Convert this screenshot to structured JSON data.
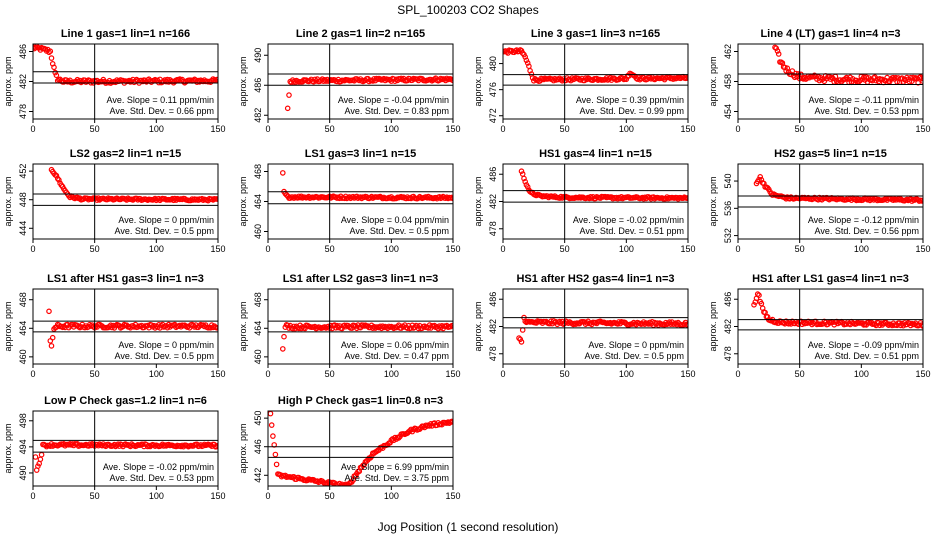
{
  "figure": {
    "title": "SPL_100203  CO2 Shapes",
    "xlabel": "Jog Position (1 second resolution)"
  },
  "chart_data": [
    {
      "type": "scatter",
      "title": "Line 1 gas=1 lin=1 n=166",
      "xlim": [
        0,
        150
      ],
      "ylim": [
        477,
        487
      ],
      "yticks": [
        478,
        482,
        486
      ],
      "xticks": [
        0,
        50,
        100,
        150
      ],
      "ylabel": "approx. ppm",
      "hlines": [
        483.3,
        481.8
      ],
      "vline": 50,
      "slope_label": "Ave. Slope = 0.11 ppm/min",
      "sd_label": "Ave. Std. Dev. = 0.66 ppm",
      "segments": [
        [
          0,
          486.5
        ],
        [
          5,
          486.4
        ],
        [
          10,
          486.2
        ],
        [
          14,
          486.0
        ],
        [
          16,
          484.5
        ],
        [
          18,
          483.0
        ],
        [
          20,
          482.3
        ],
        [
          25,
          482.0
        ],
        [
          150,
          482.1
        ]
      ],
      "noise": 0.25
    },
    {
      "type": "scatter",
      "title": "Line 2 gas=1 lin=2 n=165",
      "xlim": [
        0,
        150
      ],
      "ylim": [
        481.5,
        491.5
      ],
      "yticks": [
        482,
        486,
        490
      ],
      "xticks": [
        0,
        50,
        100,
        150
      ],
      "ylabel": "approx. ppm",
      "hlines": [
        487.5,
        486.0
      ],
      "vline": 50,
      "slope_label": "Ave. Slope = -0.04 ppm/min",
      "sd_label": "Ave. Std. Dev. = 0.83 ppm",
      "segments": [
        [
          16,
          483.0
        ],
        [
          17,
          484.7
        ],
        [
          18,
          486.5
        ],
        [
          25,
          486.6
        ],
        [
          150,
          486.8
        ]
      ],
      "noise": 0.2
    },
    {
      "type": "scatter",
      "title": "Line 3 gas=1 lin=3 n=165",
      "xlim": [
        0,
        150
      ],
      "ylim": [
        471.5,
        483
      ],
      "yticks": [
        472,
        476,
        480
      ],
      "xticks": [
        0,
        50,
        100,
        150
      ],
      "ylabel": "approx. ppm",
      "hlines": [
        478.3,
        476.7
      ],
      "vline": 50,
      "slope_label": "Ave. Slope = 0.39 ppm/min",
      "sd_label": "Ave. Std. Dev. = 0.99 ppm",
      "segments": [
        [
          0,
          481.8
        ],
        [
          15,
          481.9
        ],
        [
          18,
          481.0
        ],
        [
          22,
          479.0
        ],
        [
          25,
          477.5
        ],
        [
          100,
          477.7
        ],
        [
          103,
          478.6
        ],
        [
          106,
          478.2
        ],
        [
          110,
          477.7
        ],
        [
          150,
          477.8
        ]
      ],
      "noise": 0.22
    },
    {
      "type": "scatter",
      "title": "Line 4 (LT) gas=1 lin=4 n=3",
      "xlim": [
        0,
        150
      ],
      "ylim": [
        453,
        463
      ],
      "yticks": [
        454,
        458,
        462
      ],
      "xticks": [
        0,
        50,
        100,
        150
      ],
      "ylabel": "approx. ppm",
      "hlines": [
        459.0,
        457.6
      ],
      "vline": 50,
      "slope_label": "Ave. Slope = -0.11 ppm/min",
      "sd_label": "Ave. Std. Dev. = 0.53 ppm",
      "segments": [
        [
          30,
          462.5
        ],
        [
          35,
          460.5
        ],
        [
          40,
          459.5
        ],
        [
          50,
          458.6
        ],
        [
          80,
          458.3
        ],
        [
          150,
          458.2
        ]
      ],
      "noise": 0.4
    },
    {
      "type": "scatter",
      "title": "LS2 gas=2 lin=1 n=15",
      "xlim": [
        0,
        150
      ],
      "ylim": [
        442.5,
        453
      ],
      "yticks": [
        444,
        448,
        452
      ],
      "xticks": [
        0,
        50,
        100,
        150
      ],
      "ylabel": "approx. ppm",
      "hlines": [
        448.8,
        447.2
      ],
      "vline": 50,
      "slope_label": "Ave. Slope = 0 ppm/min",
      "sd_label": "Ave. Std. Dev. = 0.5 ppm",
      "segments": [
        [
          15,
          452.3
        ],
        [
          20,
          451.0
        ],
        [
          25,
          449.5
        ],
        [
          30,
          448.4
        ],
        [
          40,
          448.1
        ],
        [
          150,
          448.0
        ]
      ],
      "noise": 0.15
    },
    {
      "type": "scatter",
      "title": "LS1 gas=3 lin=1 n=15",
      "xlim": [
        0,
        150
      ],
      "ylim": [
        459,
        469
      ],
      "yticks": [
        460,
        464,
        468
      ],
      "xticks": [
        0,
        50,
        100,
        150
      ],
      "ylabel": "approx. ppm",
      "hlines": [
        465.3,
        463.7
      ],
      "vline": 50,
      "slope_label": "Ave. Slope = 0.04 ppm/min",
      "sd_label": "Ave. Std. Dev. = 0.5 ppm",
      "segments": [
        [
          12,
          467.8
        ],
        [
          13,
          465.2
        ],
        [
          16,
          464.6
        ],
        [
          150,
          464.5
        ]
      ],
      "noise": 0.15
    },
    {
      "type": "scatter",
      "title": "HS1 gas=4 lin=1 n=15",
      "xlim": [
        0,
        150
      ],
      "ylim": [
        476.5,
        487.5
      ],
      "yticks": [
        478,
        482,
        486
      ],
      "xticks": [
        0,
        50,
        100,
        150
      ],
      "ylabel": "approx. ppm",
      "hlines": [
        483.6,
        481.9
      ],
      "vline": 50,
      "slope_label": "Ave. Slope = -0.02 ppm/min",
      "sd_label": "Ave. Std. Dev. = 0.51 ppm",
      "segments": [
        [
          15,
          486.4
        ],
        [
          18,
          485.0
        ],
        [
          22,
          483.3
        ],
        [
          30,
          482.8
        ],
        [
          50,
          482.6
        ],
        [
          150,
          482.5
        ]
      ],
      "noise": 0.15
    },
    {
      "type": "scatter",
      "title": "HS2 gas=5 lin=1 n=15",
      "xlim": [
        0,
        150
      ],
      "ylim": [
        531.5,
        542.5
      ],
      "yticks": [
        532,
        536,
        540
      ],
      "xticks": [
        0,
        50,
        100,
        150
      ],
      "ylabel": "approx. ppm",
      "hlines": [
        537.8,
        536.2
      ],
      "vline": 50,
      "slope_label": "Ave. Slope = -0.12 ppm/min",
      "sd_label": "Ave. Std. Dev. = 0.56 ppm",
      "segments": [
        [
          15,
          539.8
        ],
        [
          18,
          540.5
        ],
        [
          22,
          539.3
        ],
        [
          28,
          538.0
        ],
        [
          40,
          537.5
        ],
        [
          150,
          537.2
        ]
      ],
      "noise": 0.18
    },
    {
      "type": "scatter",
      "title": "LS1 after HS1 gas=3 lin=1 n=3",
      "xlim": [
        0,
        150
      ],
      "ylim": [
        459,
        469.5
      ],
      "yticks": [
        460,
        464,
        468
      ],
      "xticks": [
        0,
        50,
        100,
        150
      ],
      "ylabel": "approx. ppm",
      "hlines": [
        465.0,
        463.5
      ],
      "vline": 50,
      "slope_label": "Ave. Slope = 0 ppm/min",
      "sd_label": "Ave. Std. Dev. = 0.5 ppm",
      "segments": [
        [
          13,
          466.3
        ],
        [
          14,
          462.0
        ],
        [
          15,
          461.5
        ],
        [
          17,
          464.0
        ],
        [
          20,
          464.3
        ],
        [
          150,
          464.3
        ]
      ],
      "noise": 0.25
    },
    {
      "type": "scatter",
      "title": "LS1 after LS2 gas=3 lin=1 n=3",
      "xlim": [
        0,
        150
      ],
      "ylim": [
        459,
        469.5
      ],
      "yticks": [
        460,
        464,
        468
      ],
      "xticks": [
        0,
        50,
        100,
        150
      ],
      "ylabel": "approx. ppm",
      "hlines": [
        465.0,
        463.5
      ],
      "vline": 50,
      "slope_label": "Ave. Slope = 0.06 ppm/min",
      "sd_label": "Ave. Std. Dev. = 0.47 ppm",
      "segments": [
        [
          12,
          461.0
        ],
        [
          14,
          464.3
        ],
        [
          20,
          464.2
        ],
        [
          150,
          464.2
        ]
      ],
      "noise": 0.25
    },
    {
      "type": "scatter",
      "title": "HS1 after HS2 gas=4 lin=1 n=3",
      "xlim": [
        0,
        150
      ],
      "ylim": [
        476.5,
        487.5
      ],
      "yticks": [
        478,
        482,
        486
      ],
      "xticks": [
        0,
        50,
        100,
        150
      ],
      "ylabel": "approx. ppm",
      "hlines": [
        483.3,
        481.8
      ],
      "vline": 50,
      "slope_label": "Ave. Slope = 0 ppm/min",
      "sd_label": "Ave. Std. Dev. = 0.5 ppm",
      "segments": [
        [
          13,
          480.2
        ],
        [
          15,
          479.8
        ],
        [
          17,
          483.2
        ],
        [
          20,
          482.6
        ],
        [
          150,
          482.4
        ]
      ],
      "noise": 0.25
    },
    {
      "type": "scatter",
      "title": "HS1 after LS1 gas=4 lin=1 n=3",
      "xlim": [
        0,
        150
      ],
      "ylim": [
        476.5,
        487.5
      ],
      "yticks": [
        478,
        482,
        486
      ],
      "xticks": [
        0,
        50,
        100,
        150
      ],
      "ylabel": "approx. ppm",
      "hlines": [
        483.0,
        481.5
      ],
      "vline": 50,
      "slope_label": "Ave. Slope = -0.09 ppm/min",
      "sd_label": "Ave. Std. Dev. = 0.51 ppm",
      "segments": [
        [
          13,
          485.0
        ],
        [
          16,
          487.0
        ],
        [
          20,
          484.5
        ],
        [
          25,
          483.0
        ],
        [
          35,
          482.6
        ],
        [
          150,
          482.3
        ]
      ],
      "noise": 0.25
    },
    {
      "type": "scatter",
      "title": "Low P Check gas=1.2 lin=1 n=6",
      "xlim": [
        0,
        150
      ],
      "ylim": [
        488,
        499.5
      ],
      "yticks": [
        490,
        494,
        498
      ],
      "xticks": [
        0,
        50,
        100,
        150
      ],
      "ylabel": "approx. ppm",
      "hlines": [
        495.0,
        493.2
      ],
      "vline": 50,
      "slope_label": "Ave. Slope = -0.02 ppm/min",
      "sd_label": "Ave. Std. Dev. = 0.53 ppm",
      "segments": [
        [
          2,
          492.6
        ],
        [
          3,
          490.4
        ],
        [
          5,
          491.5
        ],
        [
          7,
          493.0
        ],
        [
          8,
          494.2
        ],
        [
          15,
          494.3
        ],
        [
          150,
          494.2
        ]
      ],
      "noise": 0.2
    },
    {
      "type": "scatter",
      "title": "High P Check gas=1 lin=0.8 n=3",
      "xlim": [
        0,
        150
      ],
      "ylim": [
        440.5,
        451
      ],
      "yticks": [
        442,
        446,
        450
      ],
      "xticks": [
        0,
        50,
        100,
        150
      ],
      "ylabel": "approx. ppm",
      "hlines": [
        446.0,
        444.5
      ],
      "vline": 50,
      "slope_label": "Ave. Slope = 6.99 ppm/min",
      "sd_label": "Ave. Std. Dev. = 3.75 ppm",
      "segments": [
        [
          2,
          450.5
        ],
        [
          4,
          447.5
        ],
        [
          6,
          445.0
        ],
        [
          8,
          442.0
        ],
        [
          65,
          440.5
        ],
        [
          75,
          443.0
        ],
        [
          85,
          445.0
        ],
        [
          100,
          446.8
        ],
        [
          115,
          448.2
        ],
        [
          130,
          449.0
        ],
        [
          150,
          449.5
        ]
      ],
      "noise": 0.2
    }
  ]
}
